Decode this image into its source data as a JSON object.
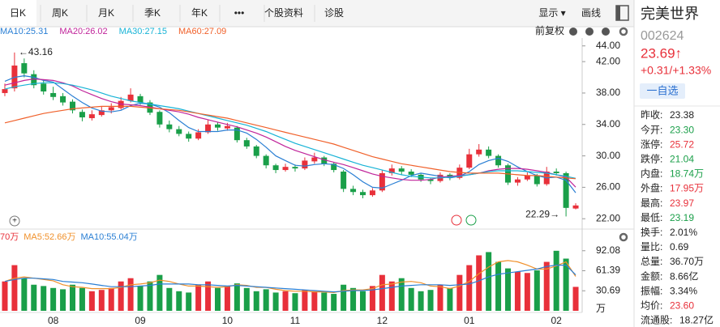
{
  "header": {
    "tabs": [
      "日K",
      "周K",
      "月K",
      "季K",
      "年K",
      "•••",
      "个股资料",
      "诊股"
    ],
    "right_tabs": [
      "显示 ▾",
      "画线"
    ],
    "adjust": "前复权"
  },
  "chart_data": [
    {
      "type": "candlestick",
      "up_color": "#e8303a",
      "down_color": "#1a9f49",
      "ylim": [
        21.2,
        45
      ],
      "yticks": [
        {
          "value": 44,
          "label": "44.00"
        },
        {
          "value": 42,
          "label": "42.00"
        },
        {
          "value": 38,
          "label": "38.00"
        },
        {
          "value": 34,
          "label": "34.00"
        },
        {
          "value": 30,
          "label": "30.00"
        },
        {
          "value": 26,
          "label": "26.00"
        },
        {
          "value": 22,
          "label": "22.00"
        }
      ],
      "annotations": [
        {
          "text": "←43.16",
          "candle": 1
        },
        {
          "text": "22.29→",
          "candle": 58
        }
      ],
      "candles": [
        [
          38.0,
          39.2,
          37.6,
          38.5
        ],
        [
          38.6,
          43.16,
          38.2,
          41.5
        ],
        [
          41.8,
          42.4,
          40.0,
          40.5
        ],
        [
          40.4,
          40.9,
          38.6,
          39.0
        ],
        [
          39.2,
          39.6,
          37.8,
          38.2
        ],
        [
          38.0,
          38.8,
          37.1,
          37.5
        ],
        [
          37.6,
          38.0,
          36.4,
          36.8
        ],
        [
          36.9,
          37.2,
          35.4,
          35.8
        ],
        [
          35.6,
          35.9,
          34.4,
          34.9
        ],
        [
          34.8,
          35.8,
          34.5,
          35.3
        ],
        [
          35.2,
          36.3,
          35.0,
          35.8
        ],
        [
          35.8,
          36.7,
          35.4,
          36.2
        ],
        [
          36.1,
          37.5,
          35.9,
          37.0
        ],
        [
          37.0,
          38.6,
          36.8,
          37.8
        ],
        [
          37.6,
          37.9,
          36.5,
          36.8
        ],
        [
          36.8,
          37.1,
          35.2,
          35.5
        ],
        [
          35.6,
          35.8,
          33.6,
          34.0
        ],
        [
          34.0,
          34.5,
          33.0,
          33.4
        ],
        [
          33.4,
          33.8,
          32.5,
          32.8
        ],
        [
          32.8,
          33.1,
          31.8,
          32.2
        ],
        [
          32.2,
          33.4,
          32.0,
          33.0
        ],
        [
          33.0,
          34.6,
          32.8,
          34.0
        ],
        [
          34.0,
          34.3,
          33.2,
          33.6
        ],
        [
          33.5,
          34.2,
          33.2,
          33.8
        ],
        [
          33.6,
          33.8,
          31.7,
          32.0
        ],
        [
          32.0,
          32.3,
          30.9,
          31.2
        ],
        [
          31.2,
          31.4,
          29.7,
          30.0
        ],
        [
          30.0,
          30.2,
          28.4,
          28.8
        ],
        [
          28.8,
          29.0,
          27.8,
          28.2
        ],
        [
          28.2,
          29.0,
          28.0,
          28.6
        ],
        [
          28.6,
          28.9,
          28.0,
          28.4
        ],
        [
          28.4,
          29.8,
          28.2,
          29.4
        ],
        [
          29.3,
          30.4,
          29.0,
          29.8
        ],
        [
          29.8,
          30.0,
          28.7,
          29.0
        ],
        [
          29.0,
          29.2,
          27.9,
          28.2
        ],
        [
          28.0,
          28.2,
          25.4,
          25.8
        ],
        [
          25.8,
          26.2,
          25.0,
          25.4
        ],
        [
          25.4,
          25.7,
          24.6,
          25.0
        ],
        [
          25.0,
          25.9,
          24.8,
          25.6
        ],
        [
          25.6,
          28.2,
          25.4,
          27.8
        ],
        [
          27.8,
          28.9,
          27.5,
          28.4
        ],
        [
          28.4,
          28.7,
          27.6,
          28.0
        ],
        [
          28.0,
          28.3,
          27.3,
          27.6
        ],
        [
          27.6,
          27.8,
          26.7,
          27.0
        ],
        [
          27.0,
          27.2,
          26.4,
          26.8
        ],
        [
          26.8,
          27.9,
          26.6,
          27.6
        ],
        [
          27.6,
          27.8,
          26.9,
          27.2
        ],
        [
          27.2,
          28.9,
          27.0,
          28.5
        ],
        [
          28.5,
          30.9,
          28.3,
          30.2
        ],
        [
          30.2,
          31.5,
          29.9,
          30.8
        ],
        [
          30.8,
          31.2,
          29.7,
          30.0
        ],
        [
          30.0,
          30.2,
          28.5,
          28.8
        ],
        [
          28.8,
          29.0,
          26.3,
          26.6
        ],
        [
          26.6,
          27.3,
          26.2,
          27.0
        ],
        [
          27.0,
          27.9,
          26.8,
          27.5
        ],
        [
          27.5,
          27.7,
          26.1,
          26.4
        ],
        [
          26.4,
          28.6,
          26.2,
          28.0
        ],
        [
          28.0,
          28.4,
          27.5,
          27.8
        ],
        [
          27.8,
          28.0,
          22.29,
          23.38
        ],
        [
          23.3,
          23.97,
          23.19,
          23.69
        ]
      ],
      "series": [
        {
          "name": "MA10:25.31",
          "color": "#2a7fd4",
          "values": [
            39.5,
            40,
            40.2,
            40,
            39.6,
            39.4,
            38.5,
            37.6,
            36.8,
            36.1,
            35.7,
            35.6,
            35.8,
            36.4,
            36.7,
            36.6,
            36.2,
            35.5,
            34.5,
            33.6,
            33.1,
            33.1,
            33.1,
            33.3,
            33.3,
            32.9,
            32.1,
            31.1,
            30.0,
            29.4,
            28.8,
            28.7,
            28.9,
            29.0,
            28.9,
            28.4,
            27.6,
            26.7,
            26.0,
            25.9,
            26.4,
            26.9,
            27.5,
            27.8,
            27.6,
            27.4,
            27.2,
            27.4,
            28.0,
            28.9,
            29.4,
            29.7,
            29.3,
            28.6,
            28.0,
            27.5,
            27.2,
            27.3,
            26.9,
            25.31
          ]
        },
        {
          "name": "MA20:26.02",
          "color": "#c0249a",
          "values": [
            39,
            39.3,
            39.6,
            39.8,
            39.7,
            39.6,
            39.3,
            38.9,
            38.3,
            37.8,
            37.3,
            36.9,
            36.6,
            36.5,
            36.4,
            36.2,
            36.0,
            35.8,
            35.6,
            35.3,
            34.9,
            34.6,
            34.3,
            34.0,
            33.7,
            33.3,
            32.9,
            32.4,
            31.8,
            31.2,
            30.7,
            30.3,
            29.9,
            29.5,
            29.2,
            28.9,
            28.5,
            28.1,
            27.7,
            27.4,
            27.2,
            27.0,
            26.9,
            26.9,
            27.0,
            27.3,
            27.4,
            27.5,
            27.6,
            27.8,
            28.1,
            28.3,
            28.4,
            28.4,
            28.3,
            28.1,
            27.9,
            27.6,
            27.3,
            26.02
          ]
        },
        {
          "name": "MA30:27.15",
          "color": "#17b3d6",
          "values": [
            38.5,
            38.8,
            39,
            39.2,
            39.3,
            39.3,
            39.2,
            39.0,
            38.7,
            38.4,
            38.0,
            37.6,
            37.3,
            37.0,
            36.8,
            36.6,
            36.4,
            36.2,
            36.0,
            35.7,
            35.4,
            35.1,
            34.8,
            34.5,
            34.2,
            33.9,
            33.5,
            33.1,
            32.6,
            32.1,
            31.6,
            31.2,
            30.8,
            30.4,
            30.0,
            29.6,
            29.2,
            28.8,
            28.5,
            28.2,
            27.9,
            27.6,
            27.4,
            27.3,
            27.2,
            27.2,
            27.3,
            27.4,
            27.6,
            27.8,
            28.0,
            28.1,
            28.1,
            28.1,
            28.0,
            27.9,
            27.8,
            27.6,
            27.4,
            27.15
          ]
        },
        {
          "name": "MA60:27.09",
          "color": "#f0602a",
          "values": [
            34.2,
            34.5,
            34.8,
            35.1,
            35.4,
            35.6,
            35.8,
            36.0,
            36.1,
            36.2,
            36.3,
            36.3,
            36.3,
            36.3,
            36.2,
            36.1,
            36.0,
            35.9,
            35.8,
            35.6,
            35.4,
            35.2,
            35.0,
            34.8,
            34.5,
            34.2,
            33.9,
            33.6,
            33.3,
            33.0,
            32.7,
            32.4,
            32.1,
            31.8,
            31.5,
            31.1,
            30.7,
            30.3,
            29.9,
            29.6,
            29.3,
            29.0,
            28.8,
            28.6,
            28.4,
            28.2,
            28.0,
            27.9,
            27.8,
            27.8,
            27.8,
            27.8,
            27.7,
            27.6,
            27.5,
            27.5,
            27.4,
            27.3,
            27.2,
            27.09
          ]
        }
      ]
    },
    {
      "type": "bar",
      "unit": "万",
      "ylim": [
        0,
        98
      ],
      "yticks": [
        92.08,
        61.39,
        30.69
      ],
      "legend": [
        {
          "text": "70万",
          "color": "#e8303a"
        },
        {
          "text": "MA5:52.66万",
          "color": "#f0902a"
        },
        {
          "text": "MA10:55.04万",
          "color": "#2a7fd4"
        }
      ],
      "categories": [
        null,
        null,
        null,
        null,
        null,
        "08",
        null,
        null,
        null,
        null,
        null,
        null,
        null,
        null,
        "09",
        null,
        null,
        null,
        null,
        null,
        null,
        null,
        null,
        "10",
        null,
        null,
        null,
        null,
        null,
        null,
        "11",
        null,
        null,
        null,
        null,
        null,
        null,
        null,
        null,
        "12",
        null,
        null,
        null,
        null,
        null,
        null,
        null,
        null,
        "01",
        null,
        null,
        null,
        null,
        null,
        null,
        null,
        null,
        "02",
        null,
        null
      ],
      "values": [
        45,
        70,
        50,
        40,
        38,
        35,
        33,
        40,
        35,
        30,
        32,
        35,
        45,
        50,
        38,
        45,
        55,
        35,
        30,
        28,
        40,
        45,
        35,
        38,
        42,
        35,
        30,
        33,
        28,
        30,
        27,
        32,
        30,
        28,
        26,
        40,
        35,
        30,
        38,
        55,
        45,
        50,
        35,
        30,
        32,
        40,
        35,
        55,
        70,
        85,
        90,
        75,
        65,
        60,
        58,
        62,
        75,
        92,
        80,
        36.7
      ],
      "series": [
        {
          "color": "#f0902a",
          "values": [
            45,
            50,
            52,
            50,
            48,
            46,
            40,
            37,
            36,
            34,
            34,
            34,
            36,
            40,
            41,
            43,
            47,
            45,
            41,
            38,
            38,
            37,
            36,
            37,
            40,
            39,
            36,
            36,
            33,
            31,
            30,
            30,
            29,
            29,
            28,
            31,
            32,
            32,
            34,
            40,
            41,
            44,
            45,
            43,
            38,
            37,
            34,
            38,
            45,
            57,
            67,
            75,
            77,
            75,
            70,
            64,
            64,
            69,
            75,
            52.66
          ]
        },
        {
          "color": "#2a7fd4",
          "values": [
            45,
            48,
            50,
            50,
            49,
            48,
            45,
            44,
            43,
            41,
            39,
            37,
            37,
            37,
            38,
            39,
            41,
            41,
            41,
            41,
            40,
            40,
            39,
            38,
            39,
            38,
            37,
            36,
            35,
            34,
            33,
            32,
            31,
            30,
            29,
            30,
            31,
            31,
            32,
            34,
            36,
            38,
            39,
            40,
            40,
            40,
            39,
            40,
            41,
            46,
            52,
            56,
            58,
            60,
            62,
            64,
            68,
            70,
            70,
            55.04
          ]
        }
      ]
    }
  ],
  "quote": {
    "name": "完美世界",
    "code": "002624",
    "price": "23.69↑",
    "change": "+0.31/+1.33%",
    "watch": "一自选",
    "stats": [
      {
        "label": "昨收:",
        "value": "23.38",
        "color": "#222"
      },
      {
        "label": "今开:",
        "value": "23.30",
        "color": "#1a9f49"
      },
      {
        "label": "涨停:",
        "value": "25.72",
        "color": "#e8303a"
      },
      {
        "label": "跌停:",
        "value": "21.04",
        "color": "#1a9f49"
      },
      {
        "label": "内盘:",
        "value": "18.74万",
        "color": "#1a9f49"
      },
      {
        "label": "外盘:",
        "value": "17.95万",
        "color": "#e8303a"
      },
      {
        "label": "最高:",
        "value": "23.97",
        "color": "#e8303a"
      },
      {
        "label": "最低:",
        "value": "23.19",
        "color": "#1a9f49"
      },
      {
        "label": "换手:",
        "value": "2.01%",
        "color": "#222"
      },
      {
        "label": "量比:",
        "value": "0.69",
        "color": "#222"
      },
      {
        "label": "总量:",
        "value": "36.70万",
        "color": "#222"
      },
      {
        "label": "金额:",
        "value": "8.66亿",
        "color": "#222"
      },
      {
        "label": "振幅:",
        "value": "3.34%",
        "color": "#222"
      },
      {
        "label": "均价:",
        "value": "23.60",
        "color": "#e8303a"
      },
      {
        "label": "流通股:",
        "value": "18.27亿",
        "color": "#222"
      }
    ]
  }
}
